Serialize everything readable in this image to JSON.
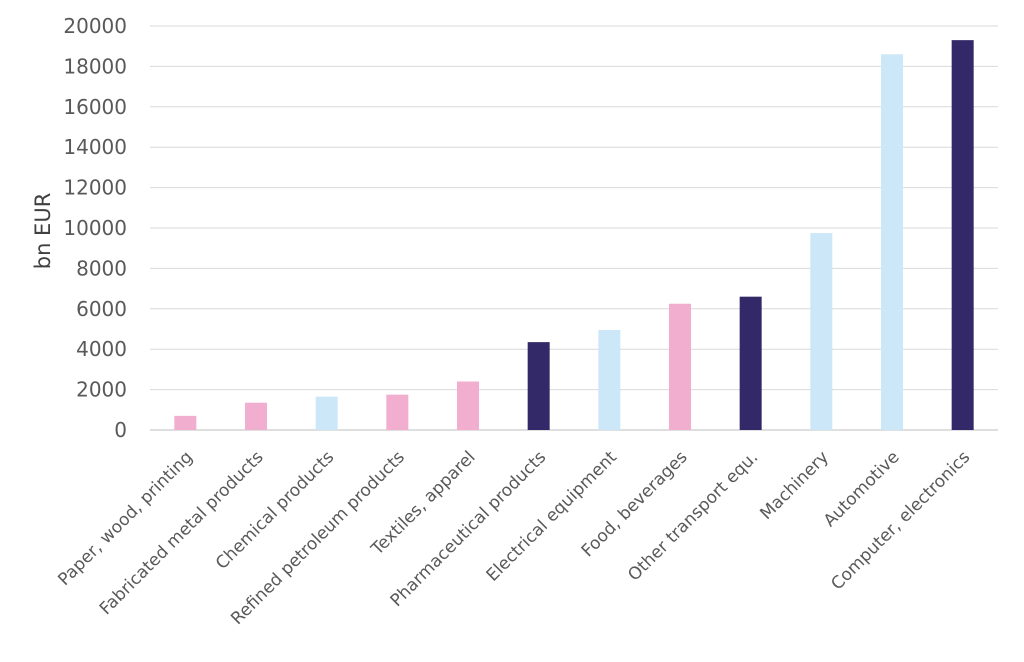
{
  "chart_data": {
    "type": "bar",
    "ylabel": "bn EUR",
    "xlabel": "",
    "ylim": [
      0,
      20000
    ],
    "yticks": [
      0,
      2000,
      4000,
      6000,
      8000,
      10000,
      12000,
      14000,
      16000,
      18000,
      20000
    ],
    "grid": true,
    "legend": "none",
    "categories": [
      "Paper, wood, printing",
      "Fabricated metal products",
      "Chemical products",
      "Refined petroleum products",
      "Textiles, apparel",
      "Pharmaceutical products",
      "Electrical equipment",
      "Food, beverages",
      "Other transport equ.",
      "Machinery",
      "Automotive",
      "Computer, electronics"
    ],
    "values": [
      700,
      1350,
      1650,
      1750,
      2400,
      4350,
      4950,
      6250,
      6600,
      9750,
      18600,
      19300
    ],
    "colors": [
      "#f2aecf",
      "#f2aecf",
      "#cce7f8",
      "#f2aecf",
      "#f2aecf",
      "#332868",
      "#cce7f8",
      "#f2aecf",
      "#332868",
      "#cce7f8",
      "#cce7f8",
      "#332868"
    ]
  }
}
